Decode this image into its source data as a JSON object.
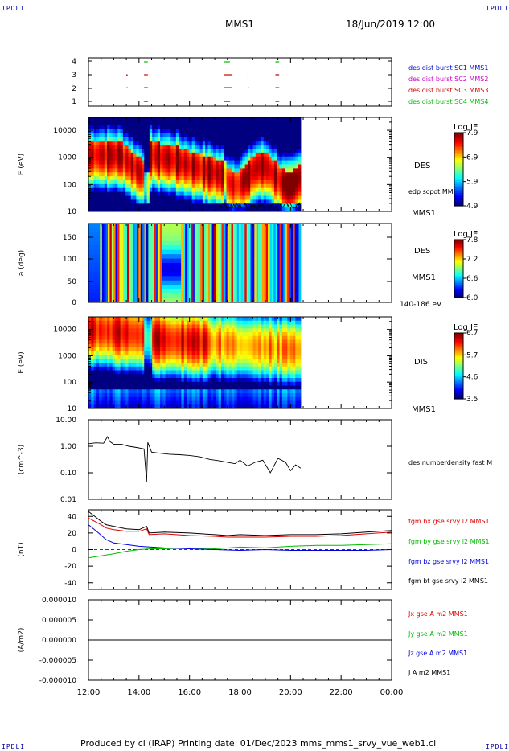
{
  "corner_tag": "IPDLI",
  "header": {
    "spacecraft": "MMS1",
    "datetime": "18/Jun/2019 12:00"
  },
  "footer": {
    "text": "Produced by cl (IRAP)   Printing date: 01/Dec/2023   mms_mms1_srvy_vue_web1.cl"
  },
  "time_axis": {
    "ticks": [
      "12:00",
      "14:00",
      "16:00",
      "18:00",
      "20:00",
      "22:00",
      "00:00"
    ],
    "range_hours": [
      0,
      12
    ],
    "data_end_hour": 8.4
  },
  "chart_data": [
    {
      "type": "scatter",
      "panel": "burst-intervals",
      "y_ticks": [
        "4",
        "3",
        "2",
        "1"
      ],
      "legend": [
        {
          "label": "des dist burst SC1 MMS1",
          "color": "#0000cc"
        },
        {
          "label": "des dist burst SC2 MMS2",
          "color": "#cc00cc"
        },
        {
          "label": "des dist burst SC3 MMS3",
          "color": "#cc0000"
        },
        {
          "label": "des dist burst SC4 MMS4",
          "color": "#00bb00"
        }
      ],
      "intervals_hours": [
        {
          "sc": 1,
          "start": 2.2,
          "end": 2.35
        },
        {
          "sc": 1,
          "start": 5.35,
          "end": 5.6
        },
        {
          "sc": 1,
          "start": 7.4,
          "end": 7.55
        },
        {
          "sc": 2,
          "start": 2.2,
          "end": 2.35
        },
        {
          "sc": 2,
          "start": 5.35,
          "end": 5.7
        },
        {
          "sc": 2,
          "start": 7.4,
          "end": 7.55
        },
        {
          "sc": 3,
          "start": 2.2,
          "end": 2.35
        },
        {
          "sc": 3,
          "start": 5.35,
          "end": 5.7
        },
        {
          "sc": 3,
          "start": 6.3,
          "end": 6.33
        },
        {
          "sc": 3,
          "start": 7.4,
          "end": 7.55
        },
        {
          "sc": 4,
          "start": 2.2,
          "end": 2.35
        },
        {
          "sc": 4,
          "start": 5.35,
          "end": 5.6
        },
        {
          "sc": 4,
          "start": 7.4,
          "end": 7.55
        }
      ],
      "dots_hours": [
        {
          "sc": 2,
          "t": 1.5
        },
        {
          "sc": 3,
          "t": 1.5
        },
        {
          "sc": 2,
          "t": 6.3
        }
      ]
    },
    {
      "type": "heatmap",
      "panel": "des-energy",
      "ylabel": "E (eV)",
      "y_ticks": [
        "10000",
        "1000",
        "100",
        "10"
      ],
      "y_log_range": [
        10,
        30000
      ],
      "label": "DES",
      "overlay_label": "edp scpot MMS1",
      "sc_label": "MMS1",
      "colorbar": {
        "title": "Log JE",
        "ticks": [
          "7.9",
          "6.9",
          "5.9",
          "4.9"
        ],
        "range": [
          4.9,
          7.9
        ]
      }
    },
    {
      "type": "heatmap",
      "panel": "des-pitch-angle",
      "ylabel": "a (deg)",
      "y_ticks": [
        "150",
        "100",
        "50",
        "0"
      ],
      "y_range": [
        0,
        180
      ],
      "label": "DES",
      "sc_label": "MMS1",
      "energy_band": "140-186 eV",
      "colorbar": {
        "title": "Log JE",
        "ticks": [
          "7.8",
          "7.2",
          "6.6",
          "6.0"
        ],
        "range": [
          6.0,
          7.8
        ]
      }
    },
    {
      "type": "heatmap",
      "panel": "dis-energy",
      "ylabel": "E (eV)",
      "y_ticks": [
        "10000",
        "1000",
        "100",
        "10"
      ],
      "y_log_range": [
        10,
        30000
      ],
      "label": "DIS",
      "sc_label": "MMS1",
      "colorbar": {
        "title": "Log JE",
        "ticks": [
          "6.7",
          "5.7",
          "4.6",
          "3.5"
        ],
        "range": [
          3.5,
          6.7
        ]
      }
    },
    {
      "type": "line",
      "panel": "density",
      "ylabel": "(cm^-3)",
      "y_ticks": [
        "10.00",
        "1.00",
        "0.10",
        "0.01"
      ],
      "ylim": [
        0.01,
        10
      ],
      "series": [
        {
          "name": "des numberdensity fast M",
          "color": "#000000",
          "x": [
            0.0,
            0.3,
            0.6,
            0.75,
            0.85,
            1.0,
            1.3,
            1.6,
            1.9,
            2.2,
            2.3,
            2.35,
            2.5,
            2.8,
            3.2,
            3.6,
            4.0,
            4.4,
            4.8,
            5.2,
            5.5,
            5.8,
            6.0,
            6.3,
            6.6,
            6.9,
            7.2,
            7.5,
            7.8,
            8.0,
            8.2,
            8.4
          ],
          "y": [
            1.25,
            1.35,
            1.3,
            2.3,
            1.5,
            1.2,
            1.2,
            1.0,
            0.9,
            0.8,
            0.045,
            1.4,
            0.6,
            0.55,
            0.5,
            0.48,
            0.45,
            0.4,
            0.32,
            0.28,
            0.25,
            0.22,
            0.3,
            0.18,
            0.25,
            0.3,
            0.1,
            0.35,
            0.25,
            0.12,
            0.2,
            0.15
          ]
        }
      ]
    },
    {
      "type": "line",
      "panel": "magnetic-field",
      "ylabel": "(nT)",
      "y_ticks": [
        "40",
        "20",
        "0",
        "-20",
        "-40"
      ],
      "ylim": [
        -48,
        48
      ],
      "series": [
        {
          "name": "fgm bx gse srvy l2 MMS1",
          "color": "#dd0000",
          "x": [
            0,
            0.5,
            0.7,
            1.0,
            1.5,
            2.0,
            2.3,
            2.4,
            3.0,
            4.0,
            5.0,
            5.5,
            6.0,
            7.0,
            8.0,
            9.0,
            10.0,
            11.0,
            12.0
          ],
          "y": [
            38,
            30,
            26,
            24,
            22,
            22,
            25,
            18,
            19,
            17,
            16,
            15,
            15,
            15,
            16,
            16,
            17,
            19,
            21
          ]
        },
        {
          "name": "fgm by gse srvy l2 MMS1",
          "color": "#00bb00",
          "x": [
            0,
            1.0,
            1.5,
            2.0,
            2.5,
            3.0,
            4.0,
            5.0,
            6.0,
            7.0,
            8.0,
            9.0,
            10.0,
            11.0,
            12.0
          ],
          "y": [
            -10,
            -5,
            -2,
            0,
            1,
            1,
            2,
            1,
            3,
            2,
            4,
            5,
            5,
            6,
            7
          ]
        },
        {
          "name": "fgm bz gse srvy l2 MMS1",
          "color": "#0000dd",
          "x": [
            0,
            0.4,
            0.7,
            1.0,
            1.5,
            2.0,
            2.5,
            3.0,
            4.0,
            5.0,
            6.0,
            7.0,
            8.0,
            9.0,
            10.0,
            11.0,
            12.0
          ],
          "y": [
            30,
            20,
            12,
            8,
            6,
            4,
            3,
            2,
            1,
            0,
            -1,
            0,
            -1,
            -1,
            -1,
            -1,
            0
          ]
        },
        {
          "name": "fgm bt gse srvy l2 MMS1",
          "color": "#000000",
          "x": [
            0,
            0.5,
            0.7,
            1.0,
            1.5,
            2.0,
            2.3,
            2.4,
            3.0,
            4.0,
            5.0,
            5.5,
            6.0,
            7.0,
            8.0,
            9.0,
            10.0,
            11.0,
            12.0
          ],
          "y": [
            46,
            34,
            30,
            28,
            25,
            24,
            28,
            20,
            21,
            20,
            18,
            17,
            18,
            17,
            18,
            18,
            19,
            21,
            23
          ]
        }
      ]
    },
    {
      "type": "line",
      "panel": "current-density",
      "ylabel": "(A/m2)",
      "y_ticks": [
        "0.000010",
        "0.000005",
        "0.000000",
        "-0.000005",
        "-0.000010"
      ],
      "ylim": [
        -1e-05,
        1e-05
      ],
      "series": [
        {
          "name": "Jx gse A m2 MMS1",
          "color": "#dd0000",
          "x": [
            0,
            12
          ],
          "y": [
            0,
            0
          ]
        },
        {
          "name": "Jy gse A m2 MMS1",
          "color": "#00bb00",
          "x": [
            0,
            12
          ],
          "y": [
            0,
            0
          ]
        },
        {
          "name": "Jz gse A m2 MMS1",
          "color": "#0000dd",
          "x": [
            0,
            12
          ],
          "y": [
            0,
            0
          ]
        },
        {
          "name": "J A m2 MMS1",
          "color": "#000000",
          "x": [
            0,
            12
          ],
          "y": [
            0,
            0
          ]
        }
      ]
    }
  ]
}
